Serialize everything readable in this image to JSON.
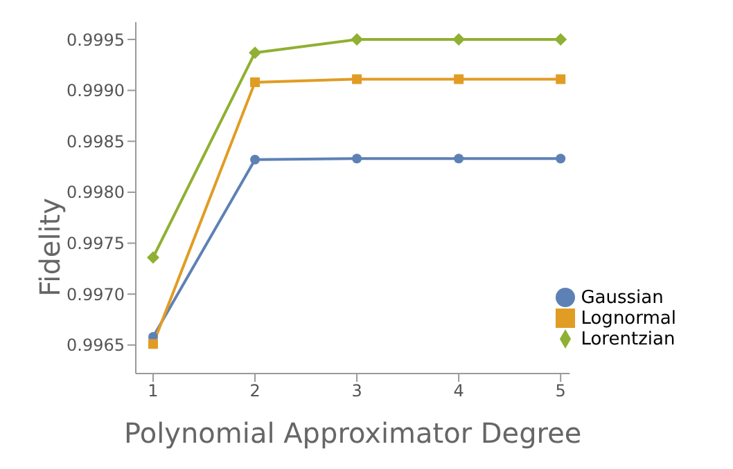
{
  "chart_data": {
    "type": "line",
    "xlabel": "Polynomial Approximator Degree",
    "ylabel": "Fidelity",
    "x": [
      1,
      2,
      3,
      4,
      5
    ],
    "series": [
      {
        "name": "Gaussian",
        "color": "#5e81b5",
        "marker": "circle",
        "values": [
          0.99658,
          0.99832,
          0.99833,
          0.99833,
          0.99833
        ]
      },
      {
        "name": "Lognormal",
        "color": "#e19c24",
        "marker": "square",
        "values": [
          0.99651,
          0.99908,
          0.99911,
          0.99911,
          0.99911
        ]
      },
      {
        "name": "Lorentzian",
        "color": "#8fb032",
        "marker": "diamond",
        "values": [
          0.99736,
          0.99937,
          0.9995,
          0.9995,
          0.9995
        ]
      }
    ],
    "xlim": [
      0.83,
      5.09
    ],
    "xticks": [
      1,
      2,
      3,
      4,
      5
    ],
    "ylim": [
      0.99622,
      0.99967
    ],
    "yticks": [
      0.9965,
      {
        "value": 0.997,
        "label": "0.9970"
      },
      0.9975,
      {
        "value": 0.998,
        "label": "0.9980"
      },
      0.9985,
      {
        "value": 0.999,
        "label": "0.9990"
      },
      0.9995
    ],
    "grid": false,
    "legend": "bottom right"
  }
}
